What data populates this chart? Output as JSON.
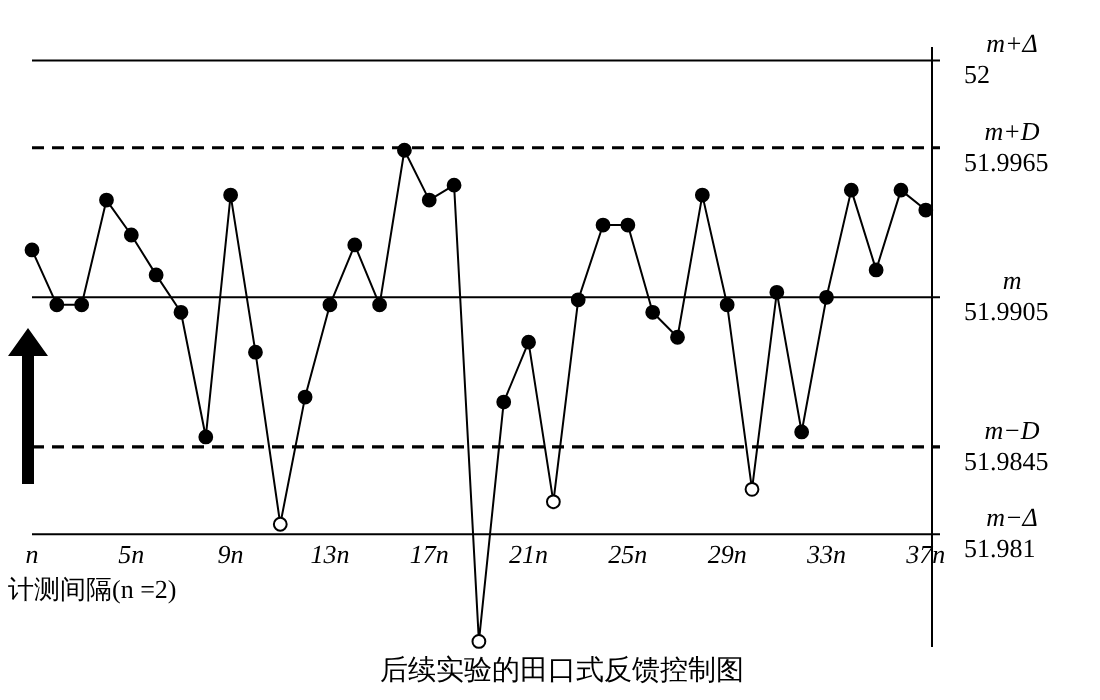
{
  "chart_data": {
    "type": "line",
    "title": "后续实验的田口式反馈控制图",
    "xlabel": "计测间隔(n =2)",
    "x": [
      1,
      2,
      3,
      4,
      5,
      6,
      7,
      8,
      9,
      10,
      11,
      12,
      13,
      14,
      15,
      16,
      17,
      18,
      19,
      20,
      21,
      22,
      23,
      24,
      25,
      26,
      27,
      28,
      29,
      30,
      31,
      32,
      33,
      34,
      35,
      36,
      37
    ],
    "series": [
      {
        "color": "#000000",
        "colors": [
          "#000000",
          "#000000",
          "#000000",
          "#000000",
          "#000000",
          "#000000",
          "#000000",
          "#000000",
          "#000000",
          "#000000",
          "#ffffff",
          "#000000",
          "#000000",
          "#000000",
          "#000000",
          "#000000",
          "#000000",
          "#000000",
          "#ffffff",
          "#000000",
          "#000000",
          "#ffffff",
          "#000000",
          "#000000",
          "#000000",
          "#000000",
          "#000000",
          "#000000",
          "#000000",
          "#ffffff",
          "#000000",
          "#000000",
          "#000000",
          "#000000",
          "#000000",
          "#000000",
          "#000000"
        ],
        "values": [
          51.9924,
          51.9902,
          51.9902,
          51.9944,
          51.993,
          51.9914,
          51.9899,
          51.9849,
          51.9946,
          51.9883,
          51.9814,
          51.9865,
          51.9902,
          51.9926,
          51.9902,
          51.9964,
          51.9944,
          51.995,
          51.9767,
          51.9863,
          51.9887,
          51.9823,
          51.9904,
          51.9934,
          51.9934,
          51.9899,
          51.9889,
          51.9946,
          51.9902,
          51.9828,
          51.9907,
          51.9851,
          51.9905,
          51.9948,
          51.9916,
          51.9948,
          51.994
        ]
      }
    ],
    "xlim": [
      1,
      37.25
    ],
    "xticks": [
      {
        "value": 1,
        "label": "n"
      },
      {
        "value": 5,
        "label": "5n"
      },
      {
        "value": 9,
        "label": "9n"
      },
      {
        "value": 13,
        "label": "13n"
      },
      {
        "value": 17,
        "label": "17n"
      },
      {
        "value": 21,
        "label": "21n"
      },
      {
        "value": 25,
        "label": "25n"
      },
      {
        "value": 29,
        "label": "29n"
      },
      {
        "value": 33,
        "label": "33n"
      },
      {
        "value": 37,
        "label": "37n"
      }
    ],
    "ylim": [
      51.9765,
      52.0005
    ],
    "yticks": [
      52,
      51.9965,
      51.9905,
      51.9845,
      51.981
    ],
    "ref_lines": [
      {
        "axis": "y",
        "value": 52,
        "label": "m+Δ",
        "line_style": "solid"
      },
      {
        "axis": "y",
        "value": 51.9965,
        "label": "m+D",
        "line_style": "dashed"
      },
      {
        "axis": "y",
        "value": 51.9905,
        "label": "m",
        "line_style": "solid"
      },
      {
        "axis": "y",
        "value": 51.9845,
        "label": "m−D",
        "line_style": "dashed"
      },
      {
        "axis": "y",
        "value": 51.981,
        "label": "m−Δ",
        "line_style": "solid"
      }
    ],
    "grid": false,
    "legend": false,
    "marker": "circle",
    "line_style": "solid"
  }
}
